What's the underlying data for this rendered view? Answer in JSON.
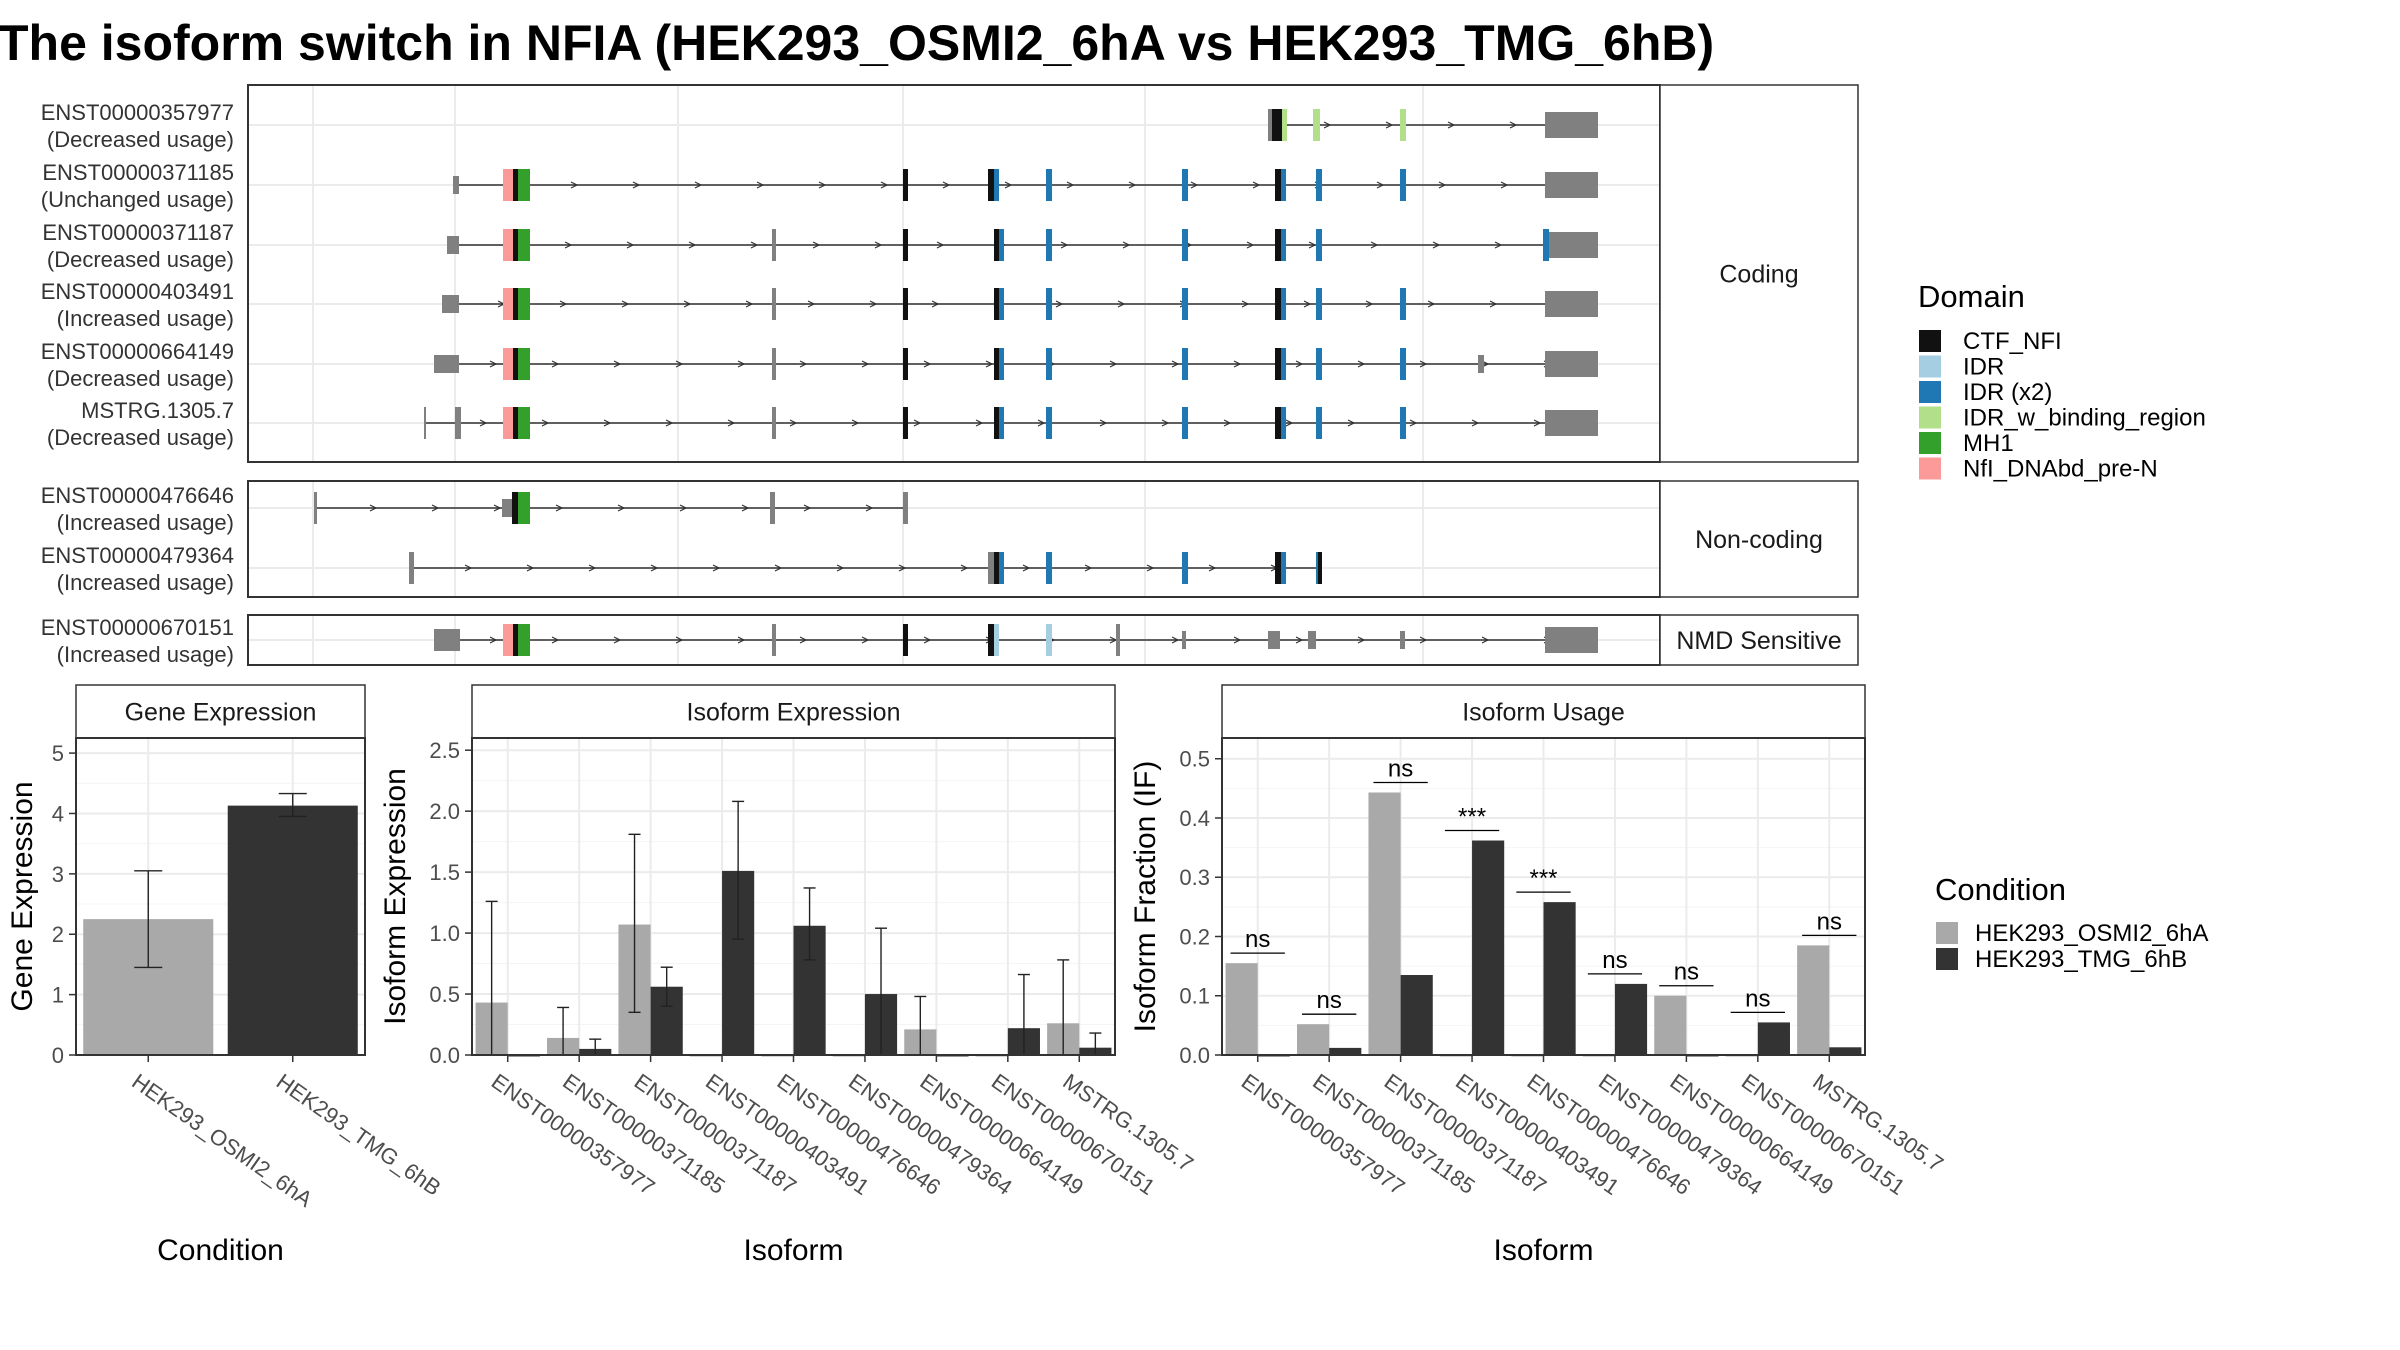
{
  "title": "The isoform switch in NFIA (HEK293_OSMI2_6hA vs HEK293_TMG_6hB)",
  "colors": {
    "CTF_NFI": "#111111",
    "IDR": "#a6cee3",
    "IDR (x2)": "#1f78b4",
    "IDR_w_binding_region": "#b2df8a",
    "MH1": "#33a02c",
    "NfI_DNAbd_pre-N": "#fb9a99",
    "exon": "#808080",
    "cond1": "#a9a9a9",
    "cond2": "#333333"
  },
  "chart_data": [
    {
      "type": "gene-structure",
      "panels": [
        {
          "label": "Coding",
          "rows": [
            {
              "id": "ENST00000357977",
              "usage": "(Decreased usage)"
            },
            {
              "id": "ENST00000371185",
              "usage": "(Unchanged usage)"
            },
            {
              "id": "ENST00000371187",
              "usage": "(Decreased usage)"
            },
            {
              "id": "ENST00000403491",
              "usage": "(Increased usage)"
            },
            {
              "id": "ENST00000664149",
              "usage": "(Decreased usage)"
            },
            {
              "id": "MSTRG.1305.7",
              "usage": "(Decreased usage)"
            }
          ]
        },
        {
          "label": "Non-coding",
          "rows": [
            {
              "id": "ENST00000476646",
              "usage": "(Increased usage)"
            },
            {
              "id": "ENST00000479364",
              "usage": "(Increased usage)"
            }
          ]
        },
        {
          "label": "NMD Sensitive",
          "rows": [
            {
              "id": "ENST00000670151",
              "usage": "(Increased usage)"
            }
          ]
        }
      ],
      "legend_title": "Domain",
      "legend": [
        "CTF_NFI",
        "IDR",
        "IDR (x2)",
        "IDR_w_binding_region",
        "MH1",
        "NfI_DNAbd_pre-N"
      ]
    },
    {
      "type": "bar",
      "title": "Gene Expression",
      "xlabel": "Condition",
      "ylabel": "Gene Expression",
      "ylim": [
        0,
        5.25
      ],
      "yticks": [
        "0",
        "1",
        "2",
        "3",
        "4",
        "5"
      ],
      "categories": [
        "HEK293_OSMI2_6hA",
        "HEK293_TMG_6hB"
      ],
      "values": [
        2.25,
        4.13
      ],
      "errors": [
        [
          1.45,
          3.05
        ],
        [
          3.95,
          4.33
        ]
      ]
    },
    {
      "type": "bar",
      "title": "Isoform Expression",
      "xlabel": "Isoform",
      "ylabel": "Isoform Expression",
      "ylim": [
        0,
        2.6
      ],
      "yticks": [
        "0.0",
        "0.5",
        "1.0",
        "1.5",
        "2.0",
        "2.5"
      ],
      "categories": [
        "ENST00000357977",
        "ENST00000371185",
        "ENST00000371187",
        "ENST00000403491",
        "ENST00000476646",
        "ENST00000479364",
        "ENST00000664149",
        "ENST00000670151",
        "MSTRG.1305.7"
      ],
      "series": [
        {
          "name": "HEK293_OSMI2_6hA",
          "values": [
            0.43,
            0.14,
            1.07,
            0.0,
            0.0,
            0.0,
            0.21,
            0.0,
            0.26
          ],
          "errors": [
            [
              0.0,
              1.26
            ],
            [
              0.0,
              0.39
            ],
            [
              0.35,
              1.81
            ],
            null,
            null,
            null,
            [
              0.0,
              0.48
            ],
            null,
            [
              0.0,
              0.78
            ]
          ]
        },
        {
          "name": "HEK293_TMG_6hB",
          "values": [
            0.0,
            0.05,
            0.56,
            1.51,
            1.06,
            0.5,
            0.0,
            0.22,
            0.06
          ],
          "errors": [
            null,
            [
              0.0,
              0.13
            ],
            [
              0.4,
              0.72
            ],
            [
              0.95,
              2.08
            ],
            [
              0.78,
              1.37
            ],
            [
              0.0,
              1.04
            ],
            null,
            [
              0.0,
              0.66
            ],
            [
              0.0,
              0.18
            ]
          ]
        }
      ]
    },
    {
      "type": "bar",
      "title": "Isoform Usage",
      "xlabel": "Isoform",
      "ylabel": "Isoform Fraction (IF)",
      "ylim": [
        0,
        0.535
      ],
      "yticks": [
        "0.0",
        "0.1",
        "0.2",
        "0.3",
        "0.4",
        "0.5"
      ],
      "categories": [
        "ENST00000357977",
        "ENST00000371185",
        "ENST00000371187",
        "ENST00000403491",
        "ENST00000476646",
        "ENST00000479364",
        "ENST00000664149",
        "ENST00000670151",
        "MSTRG.1305.7"
      ],
      "series": [
        {
          "name": "HEK293_OSMI2_6hA",
          "values": [
            0.155,
            0.052,
            0.443,
            0.0,
            0.0,
            0.0,
            0.1,
            0.0,
            0.185
          ]
        },
        {
          "name": "HEK293_TMG_6hB",
          "values": [
            0.0,
            0.012,
            0.135,
            0.362,
            0.258,
            0.12,
            0.0,
            0.055,
            0.013
          ]
        }
      ],
      "significance": [
        "ns",
        "ns",
        "ns",
        "***",
        "***",
        "ns",
        "ns",
        "ns",
        "ns"
      ],
      "legend_title": "Condition",
      "legend": [
        "HEK293_OSMI2_6hA",
        "HEK293_TMG_6hB"
      ]
    }
  ]
}
